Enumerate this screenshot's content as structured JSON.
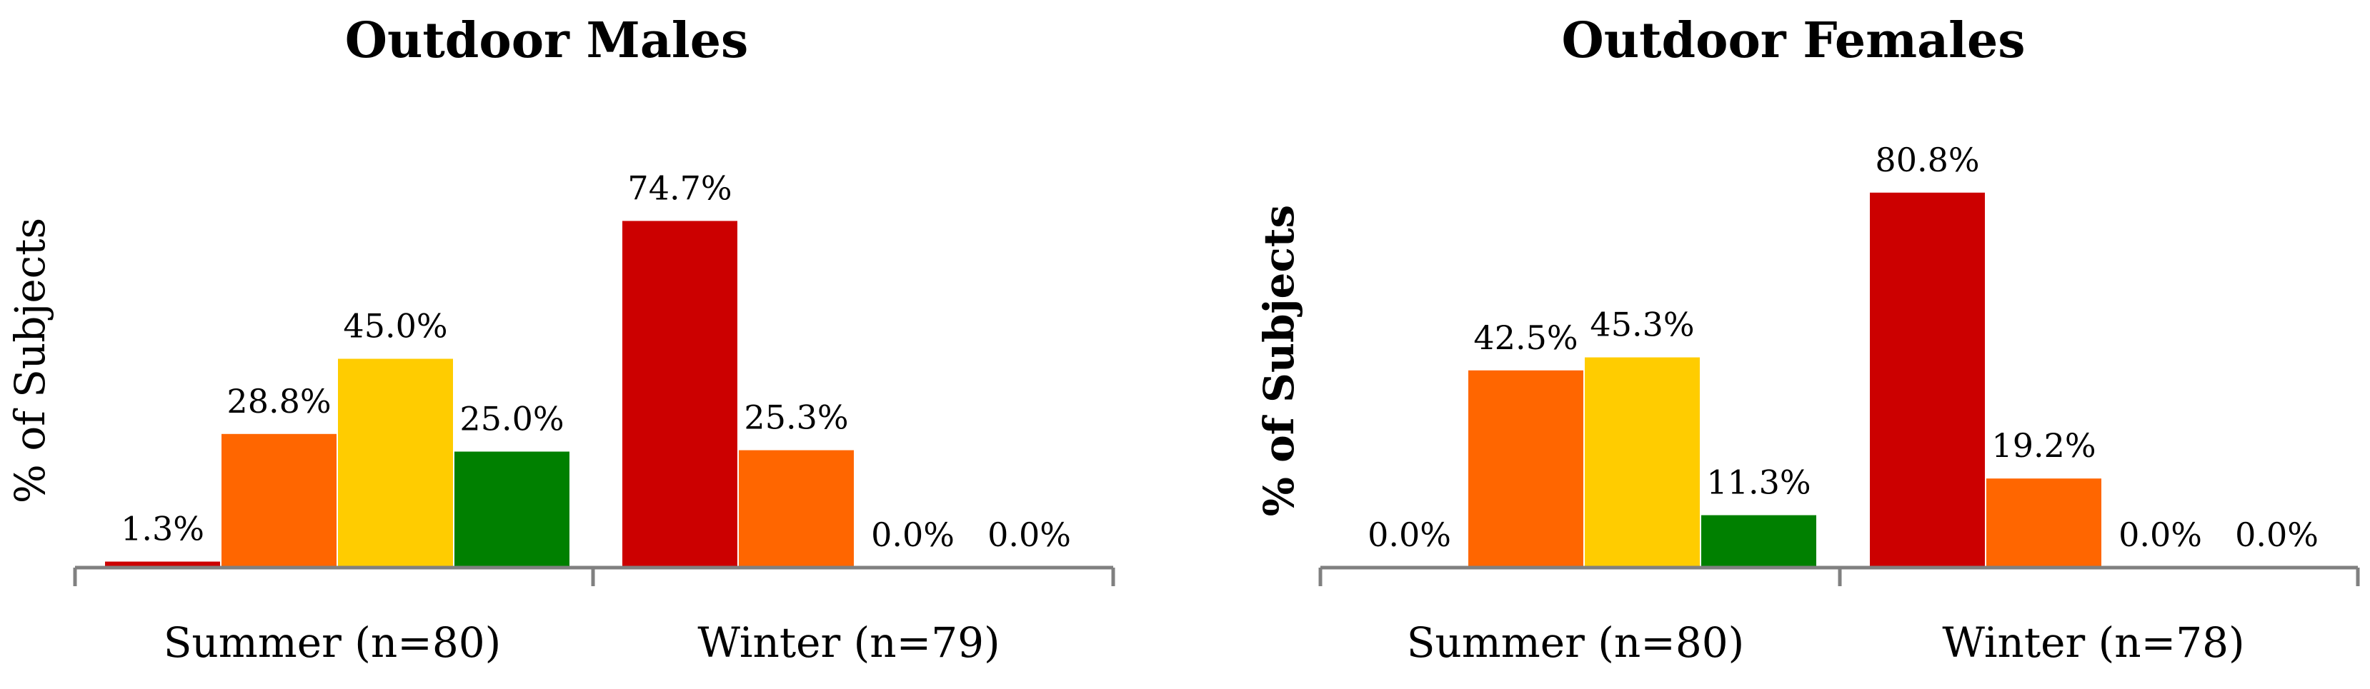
{
  "colors": [
    "#CC0000",
    "#FF6600",
    "#FFCC00",
    "#008000"
  ],
  "chart_data": [
    {
      "type": "bar",
      "title": "Outdoor Males",
      "ylabel": "% of Subjects",
      "ylabel_bold": false,
      "categories": [
        "Summer (n=80)",
        "Winter (n=79)"
      ],
      "ylim": [
        0,
        100
      ],
      "grid": false,
      "series": [
        {
          "color": "#CC0000",
          "values": [
            1.3,
            74.7
          ],
          "labels": [
            "1.3%",
            "74.7%"
          ]
        },
        {
          "color": "#FF6600",
          "values": [
            28.8,
            25.3
          ],
          "labels": [
            "28.8%",
            "25.3%"
          ]
        },
        {
          "color": "#FFCC00",
          "values": [
            45.0,
            0.0
          ],
          "labels": [
            "45.0%",
            "0.0%"
          ]
        },
        {
          "color": "#008000",
          "values": [
            25.0,
            0.0
          ],
          "labels": [
            "25.0%",
            "0.0%"
          ]
        }
      ]
    },
    {
      "type": "bar",
      "title": "Outdoor Females",
      "ylabel": "% of Subjects",
      "ylabel_bold": true,
      "categories": [
        "Summer (n=80)",
        "Winter (n=78)"
      ],
      "ylim": [
        0,
        100
      ],
      "grid": false,
      "series": [
        {
          "color": "#CC0000",
          "values": [
            0.0,
            80.8
          ],
          "labels": [
            "0.0%",
            "80.8%"
          ]
        },
        {
          "color": "#FF6600",
          "values": [
            42.5,
            19.2
          ],
          "labels": [
            "42.5%",
            "19.2%"
          ]
        },
        {
          "color": "#FFCC00",
          "values": [
            45.3,
            0.0
          ],
          "labels": [
            "45.3%",
            "0.0%"
          ]
        },
        {
          "color": "#008000",
          "values": [
            11.3,
            0.0
          ],
          "labels": [
            "11.3%",
            "0.0%"
          ]
        }
      ]
    }
  ]
}
